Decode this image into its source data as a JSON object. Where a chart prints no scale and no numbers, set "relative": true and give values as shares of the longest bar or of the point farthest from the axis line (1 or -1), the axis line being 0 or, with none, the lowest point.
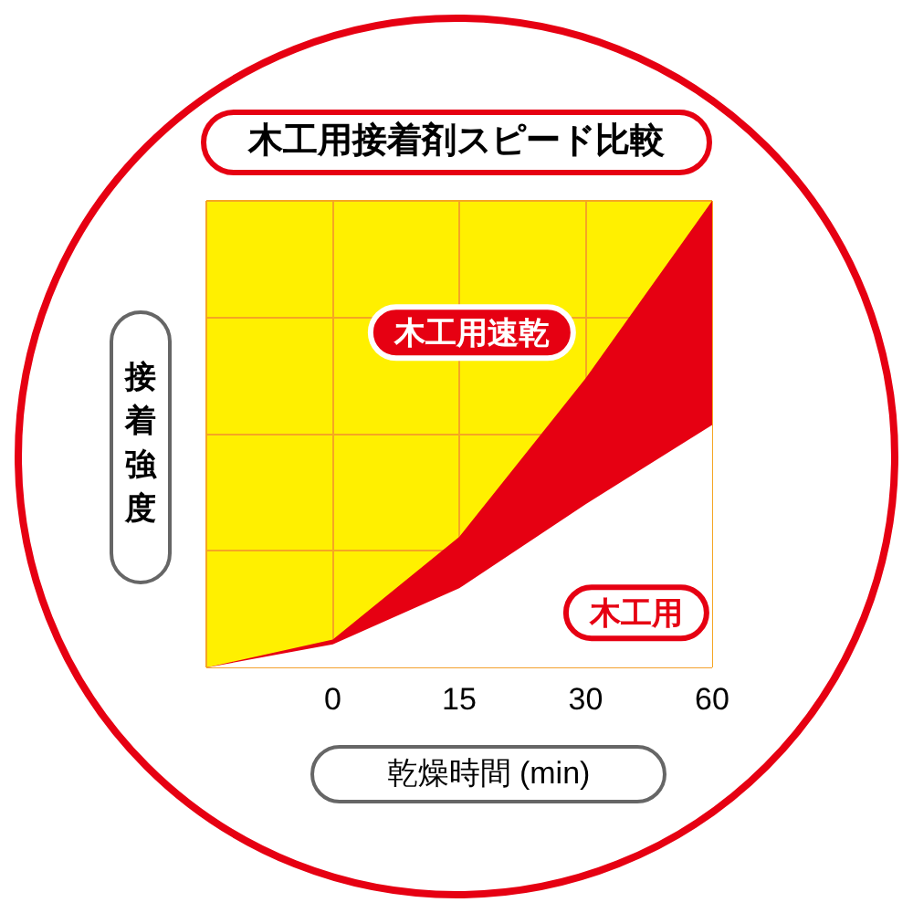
{
  "chart_data": {
    "type": "area",
    "title": "木工用接着剤スピード比較",
    "xlabel": "乾燥時間 (min)",
    "ylabel": "接着強度",
    "relative": true,
    "grid": true,
    "legend": false,
    "categories": [
      null,
      "0",
      "15",
      "30",
      "60"
    ],
    "series": [
      {
        "name": "木工用速乾",
        "color": "#e60012",
        "values": [
          0,
          0.06,
          0.28,
          0.62,
          1
        ]
      },
      {
        "name": "木工用",
        "color": "#ffffff",
        "values": [
          0,
          0.05,
          0.17,
          0.35,
          0.52
        ]
      }
    ]
  }
}
